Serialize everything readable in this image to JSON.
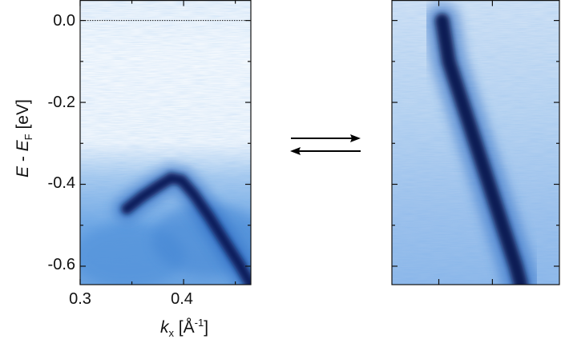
{
  "chart_data": [
    {
      "type": "heatmap",
      "panel": "left",
      "xlabel_parts": [
        "k",
        "x",
        "[Å",
        "-1",
        "]"
      ],
      "ylabel_parts": [
        "E",
        " - ",
        "E",
        "F",
        " [eV]"
      ],
      "xlim": [
        0.3,
        0.465
      ],
      "ylim": [
        -0.645,
        0.05
      ],
      "x_ticks": [
        "0.3",
        "0.4"
      ],
      "y_ticks": [
        "0.0",
        "-0.2",
        "-0.4",
        "-0.6"
      ],
      "fermi_level": 0.0,
      "band": [
        {
          "k": 0.345,
          "E": -0.46
        },
        {
          "k": 0.36,
          "E": -0.43
        },
        {
          "k": 0.375,
          "E": -0.405
        },
        {
          "k": 0.388,
          "E": -0.385
        },
        {
          "k": 0.398,
          "E": -0.39
        },
        {
          "k": 0.41,
          "E": -0.425
        },
        {
          "k": 0.425,
          "E": -0.48
        },
        {
          "k": 0.44,
          "E": -0.54
        },
        {
          "k": 0.455,
          "E": -0.6
        },
        {
          "k": 0.465,
          "E": -0.645
        }
      ],
      "background_onset_E": -0.38
    },
    {
      "type": "heatmap",
      "panel": "right",
      "ylim": [
        -0.645,
        0.05
      ],
      "fermi_level": 0.0,
      "band_rel": [
        {
          "u": 0.3,
          "E": 0.0
        },
        {
          "u": 0.34,
          "E": -0.1
        },
        {
          "u": 0.42,
          "E": -0.2
        },
        {
          "u": 0.5,
          "E": -0.3
        },
        {
          "u": 0.58,
          "E": -0.4
        },
        {
          "u": 0.66,
          "E": -0.5
        },
        {
          "u": 0.74,
          "E": -0.6
        },
        {
          "u": 0.77,
          "E": -0.645
        }
      ]
    }
  ],
  "arrows": {
    "symbol": "⇄",
    "color": "#000000"
  },
  "colors": {
    "intensity_low": "#eef5fc",
    "intensity_mid": "#4a8fd6",
    "intensity_high": "#0a1a55"
  }
}
